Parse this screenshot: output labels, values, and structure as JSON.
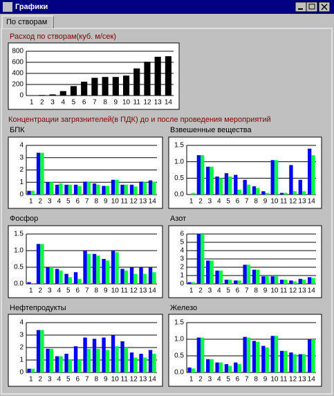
{
  "window": {
    "title": "Графики"
  },
  "tab": "По створам",
  "section_title": "Концентрации загрязнителей(в ПДК) до и после проведения мероприятий",
  "chart_data": [
    {
      "type": "bar",
      "title": "Расход по створам(куб. м/сек)",
      "categories": [
        "1",
        "2",
        "3",
        "4",
        "5",
        "6",
        "7",
        "8",
        "9",
        "10",
        "11",
        "12",
        "13",
        "14"
      ],
      "values": [
        5,
        10,
        20,
        80,
        170,
        250,
        320,
        335,
        335,
        360,
        490,
        610,
        700,
        710
      ],
      "color": "#000000",
      "ylim": [
        0,
        800
      ],
      "yticks": [
        0,
        200,
        400,
        600,
        800
      ],
      "grid": true
    },
    {
      "type": "bar",
      "title": "БПК",
      "categories": [
        "1",
        "2",
        "3",
        "4",
        "5",
        "6",
        "7",
        "8",
        "9",
        "10",
        "11",
        "12",
        "13",
        "14"
      ],
      "series": [
        {
          "color": "#0000ff",
          "values": [
            0.3,
            3.4,
            1.0,
            0.8,
            0.8,
            0.8,
            1.05,
            0.9,
            0.7,
            1.2,
            0.8,
            0.8,
            1.05,
            1.15
          ]
        },
        {
          "color": "#00ff40",
          "values": [
            0.3,
            3.4,
            1.0,
            0.9,
            0.8,
            0.7,
            1.0,
            0.8,
            0.7,
            1.2,
            0.8,
            0.65,
            1.0,
            1.05
          ]
        }
      ],
      "ylim": [
        0,
        4
      ],
      "yticks": [
        0,
        1,
        2,
        3,
        4
      ],
      "grid": true
    },
    {
      "type": "bar",
      "title": "Взвешенные вещества",
      "categories": [
        "1",
        "2",
        "3",
        "4",
        "5",
        "6",
        "7",
        "8",
        "9",
        "10",
        "11",
        "12",
        "13",
        "14"
      ],
      "series": [
        {
          "color": "#0000ff",
          "values": [
            0.0,
            1.2,
            0.85,
            0.55,
            0.65,
            0.6,
            0.45,
            0.25,
            0.1,
            1.05,
            0.05,
            0.9,
            0.45,
            1.4
          ]
        },
        {
          "color": "#00ff40",
          "values": [
            0.05,
            1.2,
            0.85,
            0.5,
            0.55,
            0.15,
            0.3,
            0.2,
            0.05,
            1.05,
            0.05,
            0.1,
            0.1,
            1.2
          ]
        }
      ],
      "ylim": [
        0,
        1.5
      ],
      "yticks": [
        {
          "value": 0,
          "label": "0.0"
        },
        {
          "value": 0.5,
          "label": "0.5"
        },
        {
          "value": 1,
          "label": "1.0"
        },
        {
          "value": 1.5,
          "label": "1.5"
        }
      ],
      "grid": true
    },
    {
      "type": "bar",
      "title": "Фосфор",
      "categories": [
        "1",
        "2",
        "3",
        "4",
        "5",
        "6",
        "7",
        "8",
        "9",
        "10",
        "11",
        "12",
        "13",
        "14"
      ],
      "series": [
        {
          "color": "#0000ff",
          "values": [
            0.05,
            1.2,
            0.5,
            0.45,
            0.3,
            0.35,
            1.0,
            0.9,
            0.75,
            1.0,
            0.45,
            0.5,
            0.5,
            0.5
          ]
        },
        {
          "color": "#00ff40",
          "values": [
            0.02,
            1.2,
            0.5,
            0.4,
            0.2,
            0.15,
            0.9,
            0.85,
            0.7,
            0.95,
            0.4,
            0.3,
            0.3,
            0.35
          ]
        }
      ],
      "ylim": [
        0,
        1.5
      ],
      "yticks": [
        {
          "value": 0,
          "label": "0.0"
        },
        {
          "value": 0.5,
          "label": "0.5"
        },
        {
          "value": 1,
          "label": "1.0"
        },
        {
          "value": 1.5,
          "label": "1.5"
        }
      ],
      "grid": true
    },
    {
      "type": "bar",
      "title": "Азот",
      "categories": [
        "1",
        "2",
        "3",
        "4",
        "5",
        "6",
        "7",
        "8",
        "9",
        "10",
        "11",
        "12",
        "13",
        "14"
      ],
      "series": [
        {
          "color": "#0000ff",
          "values": [
            0.2,
            6.0,
            2.8,
            1.6,
            0.5,
            0.4,
            2.3,
            1.7,
            0.9,
            0.9,
            0.5,
            0.4,
            0.6,
            0.8
          ]
        },
        {
          "color": "#00ff40",
          "values": [
            0.2,
            6.0,
            2.8,
            1.6,
            0.5,
            0.4,
            2.3,
            1.7,
            0.9,
            0.9,
            0.5,
            0.3,
            0.5,
            0.7
          ]
        }
      ],
      "ylim": [
        0,
        6
      ],
      "yticks": [
        0,
        1,
        2,
        3,
        4,
        5,
        6
      ],
      "grid": true
    },
    {
      "type": "bar",
      "title": "Нефтепродукты",
      "categories": [
        "1",
        "2",
        "3",
        "4",
        "5",
        "6",
        "7",
        "8",
        "9",
        "10",
        "11",
        "12",
        "13",
        "14"
      ],
      "series": [
        {
          "color": "#0000ff",
          "values": [
            0.3,
            3.4,
            1.9,
            1.3,
            1.5,
            2.1,
            2.8,
            2.7,
            2.8,
            3.0,
            2.5,
            1.6,
            1.5,
            1.8
          ]
        },
        {
          "color": "#00ff40",
          "values": [
            0.3,
            3.4,
            1.9,
            1.3,
            1.0,
            1.0,
            1.9,
            1.9,
            1.8,
            2.1,
            2.0,
            1.2,
            1.2,
            1.5
          ]
        }
      ],
      "ylim": [
        0,
        4
      ],
      "yticks": [
        0,
        1,
        2,
        3,
        4
      ],
      "grid": true
    },
    {
      "type": "bar",
      "title": "Железо",
      "categories": [
        "1",
        "2",
        "3",
        "4",
        "5",
        "6",
        "7",
        "8",
        "9",
        "10",
        "11",
        "12",
        "13",
        "14"
      ],
      "series": [
        {
          "color": "#0000ff",
          "values": [
            0.15,
            1.05,
            0.4,
            0.3,
            0.25,
            0.3,
            1.07,
            0.95,
            0.8,
            1.1,
            0.65,
            0.6,
            0.55,
            1.0
          ]
        },
        {
          "color": "#00ff40",
          "values": [
            0.12,
            1.05,
            0.4,
            0.3,
            0.2,
            0.25,
            1.05,
            0.92,
            0.75,
            1.1,
            0.65,
            0.55,
            0.55,
            1.0
          ]
        }
      ],
      "ylim": [
        0,
        1.5
      ],
      "yticks": [
        {
          "value": 0,
          "label": "0.0"
        },
        {
          "value": 0.5,
          "label": "0.5"
        },
        {
          "value": 1,
          "label": "1.0"
        },
        {
          "value": 1.5,
          "label": "1.5"
        }
      ],
      "grid": true
    }
  ]
}
